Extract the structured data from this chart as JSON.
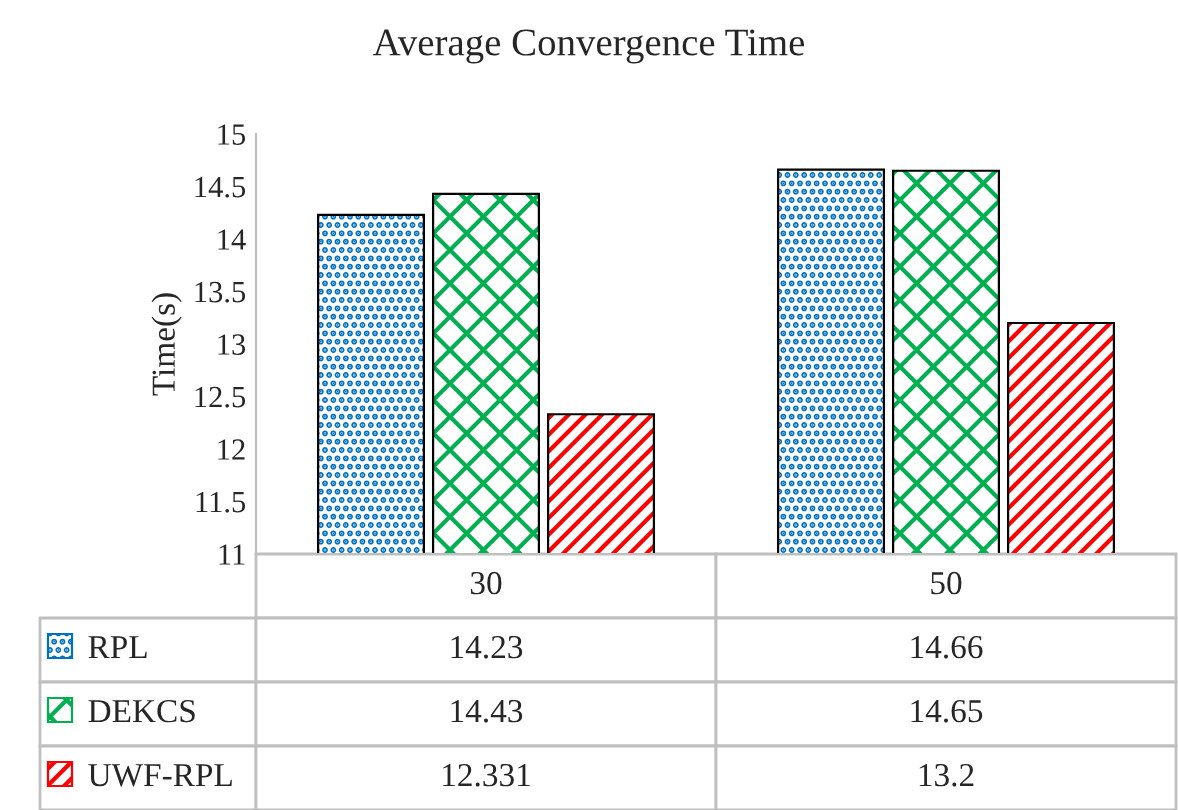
{
  "chart_data": {
    "type": "bar",
    "title": "Average Convergence Time",
    "ylabel": "Time(s)",
    "categories": [
      "30",
      "50"
    ],
    "series": [
      {
        "name": "RPL",
        "color": "#0070c0",
        "values": [
          14.23,
          14.66
        ]
      },
      {
        "name": "DEKCS",
        "color": "#00b050",
        "values": [
          14.43,
          14.65
        ]
      },
      {
        "name": "UWF-RPL",
        "color": "#ff0000",
        "values": [
          12.331,
          13.2
        ]
      }
    ],
    "ylim": [
      11,
      15
    ],
    "yticks": [
      11,
      11.5,
      12,
      12.5,
      13,
      13.5,
      14,
      14.5,
      15
    ],
    "data_labels": true,
    "grid": false,
    "legend": "bottom left"
  }
}
